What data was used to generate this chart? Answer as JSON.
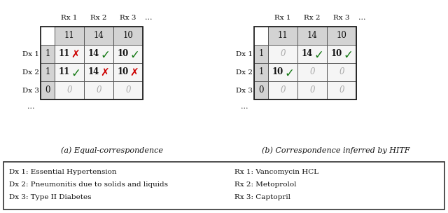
{
  "title_a": "(a) Equal-correspondence",
  "title_b": "(b) Correspondence inferred by HITF",
  "col_headers": [
    "Rx 1",
    "Rx 2",
    "Rx 3"
  ],
  "row_headers": [
    "Dx 1",
    "Dx 2",
    "Dx 3"
  ],
  "freq_row": [
    "11",
    "14",
    "10"
  ],
  "freq_col_a": [
    "1",
    "1",
    "0"
  ],
  "freq_col_b": [
    "1",
    "1",
    "0"
  ],
  "matrix_a": [
    [
      "11",
      "14",
      "10"
    ],
    [
      "11",
      "14",
      "10"
    ],
    [
      "0",
      "0",
      "0"
    ]
  ],
  "matrix_a_bold": [
    [
      true,
      true,
      true
    ],
    [
      true,
      true,
      true
    ],
    [
      false,
      false,
      false
    ]
  ],
  "matrix_a_marks": [
    [
      "red_x",
      "green_check",
      "green_check"
    ],
    [
      "green_check",
      "red_x",
      "red_x"
    ],
    [
      "none",
      "none",
      "none"
    ]
  ],
  "matrix_b": [
    [
      "0",
      "14",
      "10"
    ],
    [
      "10",
      "0",
      "0"
    ],
    [
      "0",
      "0",
      "0"
    ]
  ],
  "matrix_b_bold": [
    [
      false,
      true,
      true
    ],
    [
      true,
      false,
      false
    ],
    [
      false,
      false,
      false
    ]
  ],
  "matrix_b_marks": [
    [
      "none",
      "green_check",
      "green_check"
    ],
    [
      "green_check",
      "none",
      "none"
    ],
    [
      "none",
      "none",
      "none"
    ]
  ],
  "legend_left": [
    "Dx 1: Essential Hypertension",
    "Dx 2: Pneumonitis due to solids and liquids",
    "Dx 3: Type II Diabetes"
  ],
  "legend_right": [
    "Rx 1: Vancomycin HCL",
    "Rx 2: Metoprolol",
    "Rx 3: Captopril"
  ],
  "bg_color": "#ffffff",
  "header_bg": "#d3d3d3",
  "cell_bg": "#f5f5f5"
}
